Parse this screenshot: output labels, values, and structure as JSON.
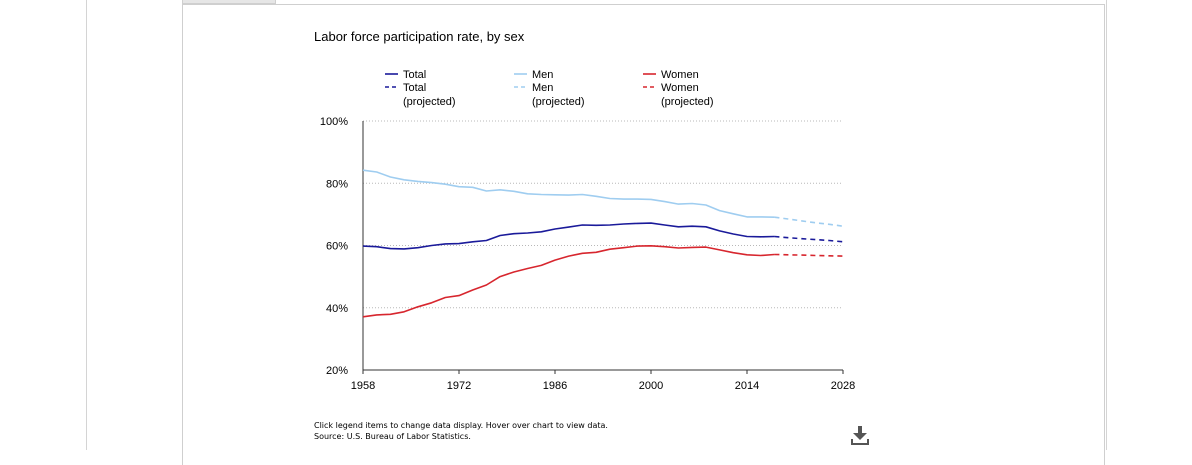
{
  "chart_data": {
    "type": "line",
    "title": "Labor force participation rate, by sex",
    "xlabel": "",
    "ylabel": "",
    "xlim": [
      1958,
      2028
    ],
    "ylim": [
      20,
      100
    ],
    "x_ticks": [
      1958,
      1972,
      1986,
      2000,
      2014,
      2028
    ],
    "x_tick_labels": [
      "1958",
      "1972",
      "1986",
      "2000",
      "2014",
      "2028"
    ],
    "y_ticks": [
      20,
      40,
      60,
      80,
      100
    ],
    "y_tick_labels": [
      "20%",
      "40%",
      "60%",
      "80%",
      "100%"
    ],
    "grid": true,
    "legend_position": "top",
    "series": [
      {
        "name": "Total",
        "key": "total",
        "color": "#1a1a9a",
        "dashed": false,
        "x": [
          1958,
          1960,
          1962,
          1964,
          1966,
          1968,
          1970,
          1972,
          1974,
          1976,
          1978,
          1980,
          1982,
          1984,
          1986,
          1988,
          1990,
          1992,
          1994,
          1996,
          1998,
          2000,
          2002,
          2004,
          2006,
          2008,
          2010,
          2012,
          2014,
          2016,
          2018
        ],
        "y": [
          59.8,
          59.6,
          59.0,
          58.9,
          59.3,
          60.0,
          60.5,
          60.6,
          61.2,
          61.6,
          63.2,
          63.8,
          64.0,
          64.4,
          65.3,
          65.9,
          66.6,
          66.5,
          66.6,
          66.9,
          67.1,
          67.2,
          66.6,
          66.0,
          66.2,
          66.0,
          64.7,
          63.7,
          62.9,
          62.8,
          62.9
        ]
      },
      {
        "name": "Total (projected)",
        "label_lines": [
          "Total",
          "(projected)"
        ],
        "key": "total_proj",
        "color": "#1a1a9a",
        "dashed": true,
        "x": [
          2018,
          2020,
          2022,
          2024,
          2026,
          2028
        ],
        "y": [
          62.9,
          62.5,
          62.2,
          61.9,
          61.6,
          61.2
        ]
      },
      {
        "name": "Men",
        "key": "men",
        "color": "#9fcdf0",
        "dashed": false,
        "x": [
          1958,
          1960,
          1962,
          1964,
          1966,
          1968,
          1970,
          1972,
          1974,
          1976,
          1978,
          1980,
          1982,
          1984,
          1986,
          1988,
          1990,
          1992,
          1994,
          1996,
          1998,
          2000,
          2002,
          2004,
          2006,
          2008,
          2010,
          2012,
          2014,
          2016,
          2018
        ],
        "y": [
          84.2,
          83.6,
          82.0,
          81.1,
          80.6,
          80.2,
          79.7,
          78.9,
          78.7,
          77.5,
          77.9,
          77.4,
          76.6,
          76.4,
          76.3,
          76.2,
          76.4,
          75.8,
          75.1,
          74.9,
          74.9,
          74.8,
          74.1,
          73.3,
          73.5,
          73.0,
          71.2,
          70.2,
          69.2,
          69.2,
          69.1
        ]
      },
      {
        "name": "Men (projected)",
        "label_lines": [
          "Men",
          "(projected)"
        ],
        "key": "men_proj",
        "color": "#9fcdf0",
        "dashed": true,
        "x": [
          2018,
          2020,
          2022,
          2024,
          2026,
          2028
        ],
        "y": [
          69.1,
          68.5,
          67.9,
          67.3,
          66.8,
          66.2
        ]
      },
      {
        "name": "Women",
        "key": "women",
        "color": "#d7262e",
        "dashed": false,
        "x": [
          1958,
          1960,
          1962,
          1964,
          1966,
          1968,
          1970,
          1972,
          1974,
          1976,
          1978,
          1980,
          1982,
          1984,
          1986,
          1988,
          1990,
          1992,
          1994,
          1996,
          1998,
          2000,
          2002,
          2004,
          2006,
          2008,
          2010,
          2012,
          2014,
          2016,
          2018
        ],
        "y": [
          37.1,
          37.7,
          37.9,
          38.7,
          40.3,
          41.6,
          43.3,
          43.9,
          45.7,
          47.3,
          50.0,
          51.5,
          52.6,
          53.6,
          55.3,
          56.6,
          57.5,
          57.8,
          58.8,
          59.3,
          59.8,
          59.9,
          59.6,
          59.2,
          59.4,
          59.5,
          58.6,
          57.7,
          57.0,
          56.8,
          57.1
        ]
      },
      {
        "name": "Women (projected)",
        "label_lines": [
          "Women",
          "(projected)"
        ],
        "key": "women_proj",
        "color": "#d7262e",
        "dashed": true,
        "x": [
          2018,
          2020,
          2022,
          2024,
          2026,
          2028
        ],
        "y": [
          57.1,
          57.0,
          56.9,
          56.8,
          56.7,
          56.6
        ]
      }
    ],
    "annotations": []
  },
  "footer": {
    "instructions": "Click legend items to change data display. Hover over chart to view data.",
    "source": "Source: U.S. Bureau of Labor Statistics."
  },
  "icons": {
    "download": "download-icon"
  }
}
